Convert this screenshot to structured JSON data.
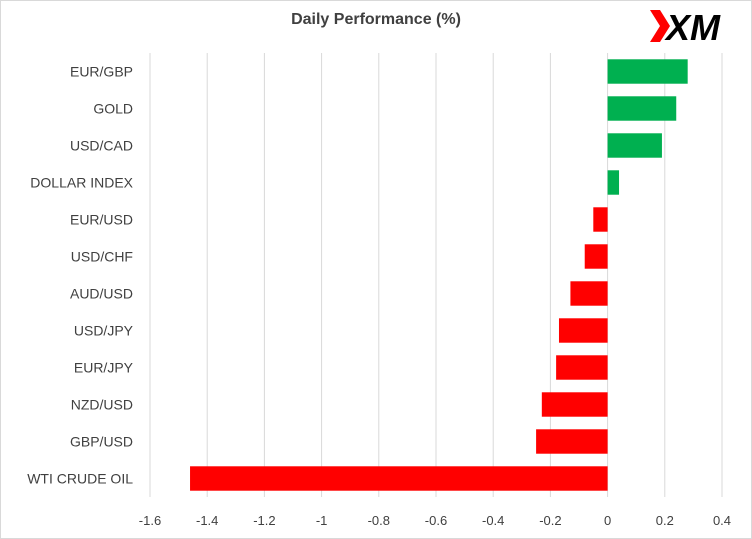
{
  "brand": {
    "logo_text": "XM",
    "logo_color": "#ff0000",
    "logo_accent": "#000000"
  },
  "chart_data": {
    "type": "bar",
    "orientation": "horizontal",
    "title": "Daily Performance (%)",
    "xlabel": "",
    "ylabel": "",
    "categories": [
      "EUR/GBP",
      "GOLD",
      "USD/CAD",
      "DOLLAR INDEX",
      "EUR/USD",
      "USD/CHF",
      "AUD/USD",
      "USD/JPY",
      "EUR/JPY",
      "NZD/USD",
      "GBP/USD",
      "WTI CRUDE OIL"
    ],
    "values": [
      0.28,
      0.24,
      0.19,
      0.04,
      -0.05,
      -0.08,
      -0.13,
      -0.17,
      -0.18,
      -0.23,
      -0.25,
      -1.46
    ],
    "xlim": [
      -1.6,
      0.4
    ],
    "xticks": [
      -1.6,
      -1.4,
      -1.2,
      -1,
      -0.8,
      -0.6,
      -0.4,
      -0.2,
      0,
      0.2,
      0.4
    ],
    "xtick_labels": [
      "-1.6",
      "-1.4",
      "-1.2",
      "-1",
      "-0.8",
      "-0.6",
      "-0.4",
      "-0.2",
      "0",
      "0.2",
      "0.4"
    ],
    "grid": "vertical",
    "legend": "none",
    "colors": {
      "positive": "#00b050",
      "negative": "#ff0000",
      "grid": "#d9d9d9"
    }
  }
}
